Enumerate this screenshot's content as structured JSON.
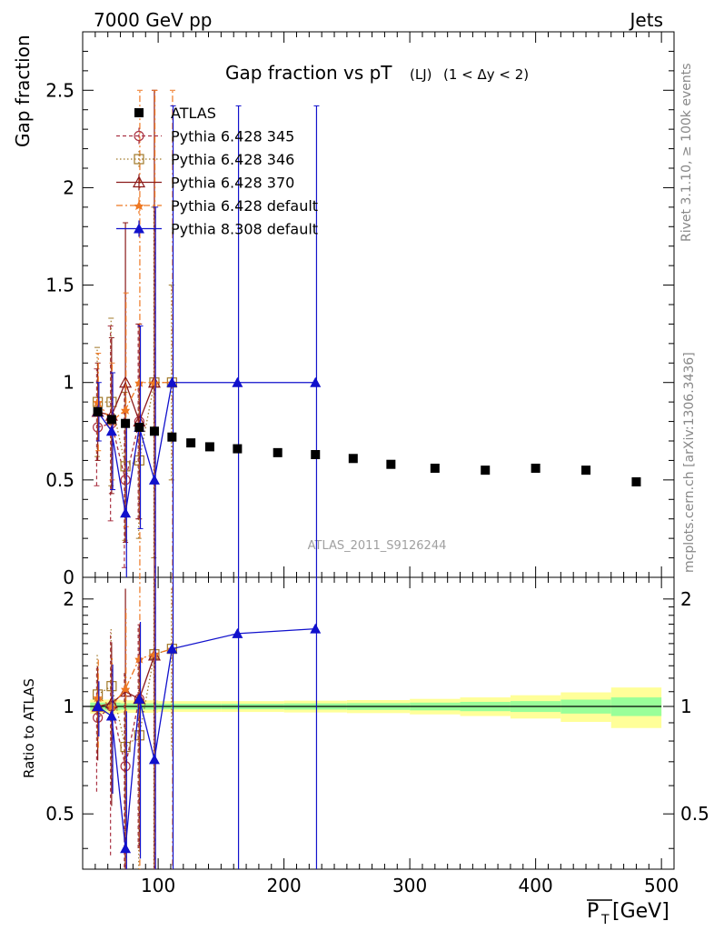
{
  "header": {
    "left": "7000 GeV pp",
    "right": "Jets"
  },
  "side_labels": {
    "top": "Rivet 3.1.10, ≥ 100k events",
    "bottom": "mcplots.cern.ch [arXiv:1306.3436]"
  },
  "chart_data": {
    "type": "scatter",
    "title": "Gap fraction vs pT",
    "title_sub": "(LJ)",
    "title_cut": "(1 < Δy < 2)",
    "analysis_tag": "ATLAS_2011_S9126244",
    "xlabel": "P̅T [GeV]",
    "xlabel_main": "P",
    "xlabel_sub": "T",
    "xlabel_unit": " [GeV]",
    "ylabel": "Gap fraction",
    "ratio_ylabel": "Ratio to ATLAS",
    "xlim": [
      40,
      510
    ],
    "ylim": [
      0,
      2.8
    ],
    "ratio_ylim": [
      0.35,
      2.3
    ],
    "x_ticks": [
      "100",
      "200",
      "300",
      "400",
      "500"
    ],
    "y_ticks": [
      "0",
      "0.5",
      "1",
      "1.5",
      "2",
      "2.5"
    ],
    "ratio_y_ticks": [
      "0.5",
      "1",
      "2"
    ],
    "legend": {
      "placement": "top-left",
      "entries": [
        "ATLAS",
        "Pythia 6.428 345",
        "Pythia 6.428 346",
        "Pythia 6.428 370",
        "Pythia 6.428 default",
        "Pythia 8.308 default"
      ]
    },
    "reference": {
      "name": "ATLAS",
      "x": [
        52,
        63,
        74,
        85,
        97,
        111,
        126,
        141,
        163,
        195,
        225,
        255,
        285,
        320,
        360,
        400,
        440,
        480
      ],
      "y": [
        0.85,
        0.81,
        0.79,
        0.77,
        0.75,
        0.72,
        0.69,
        0.67,
        0.66,
        0.64,
        0.63,
        0.61,
        0.58,
        0.56,
        0.55,
        0.56,
        0.55,
        0.49
      ]
    },
    "uncertainty_band": {
      "x_edges": [
        46,
        70,
        100,
        150,
        200,
        250,
        300,
        340,
        380,
        420,
        460,
        500
      ],
      "green_halfwidth": [
        0.025,
        0.02,
        0.018,
        0.018,
        0.02,
        0.022,
        0.025,
        0.03,
        0.035,
        0.045,
        0.06
      ],
      "yellow_halfwidth": [
        0.045,
        0.04,
        0.035,
        0.035,
        0.038,
        0.042,
        0.05,
        0.06,
        0.075,
        0.095,
        0.13
      ]
    },
    "series": [
      {
        "name": "Pythia 6.428 345",
        "color": "#aa3344",
        "dash": "4,3",
        "marker": "circle-open",
        "x": [
          52,
          63,
          74,
          85
        ],
        "y": [
          0.77,
          0.79,
          0.5,
          0.8
        ],
        "err": [
          0.3,
          0.5,
          0.45,
          0.5
        ],
        "ratio": [
          0.93,
          1.0,
          0.68,
          1.05
        ]
      },
      {
        "name": "Pythia 6.428 346",
        "color": "#a07828",
        "dash": "1.5,2.5",
        "marker": "square-open",
        "x": [
          52,
          63,
          74,
          85,
          97,
          111
        ],
        "y": [
          0.9,
          0.9,
          0.57,
          0.6,
          1.0,
          1.0
        ],
        "err": [
          0.28,
          0.43,
          0.38,
          0.4,
          0.9,
          0.5
        ],
        "ratio": [
          1.08,
          1.14,
          0.77,
          0.83,
          1.4,
          1.45
        ]
      },
      {
        "name": "Pythia 6.428 370",
        "color": "#8b1a1a",
        "dash": "",
        "marker": "triangle-open",
        "x": [
          52,
          63,
          74,
          85,
          97
        ],
        "y": [
          0.85,
          0.83,
          1.0,
          0.8,
          1.0
        ],
        "err": [
          0.25,
          0.4,
          0.82,
          0.5,
          1.5
        ],
        "ratio": [
          1.0,
          1.02,
          1.1,
          1.05,
          1.39
        ]
      },
      {
        "name": "Pythia 6.428 default",
        "color": "#ee7722",
        "dash": "7,3,2,3",
        "marker": "star",
        "x": [
          52,
          63,
          74,
          85,
          97,
          111
        ],
        "y": [
          0.9,
          0.8,
          0.86,
          1.0,
          1.0,
          1.0
        ],
        "err": [
          0.25,
          0.3,
          0.6,
          1.5,
          1.5,
          1.5
        ],
        "ratio": [
          1.06,
          1.0,
          1.12,
          1.36,
          1.4,
          1.45
        ]
      },
      {
        "name": "Pythia 8.308 default",
        "color": "#1111cc",
        "dash": "",
        "marker": "triangle-filled",
        "x": [
          52,
          63,
          74,
          85,
          97,
          111,
          163,
          225
        ],
        "y": [
          0.85,
          0.75,
          0.33,
          0.77,
          0.5,
          1.0,
          1.0,
          1.0
        ],
        "err": [
          0.15,
          0.3,
          0.45,
          0.52,
          1.4,
          1.42,
          1.42,
          1.42
        ],
        "ratio": [
          1.0,
          0.94,
          0.4,
          1.05,
          0.71,
          1.45,
          1.6,
          1.65
        ]
      }
    ]
  }
}
